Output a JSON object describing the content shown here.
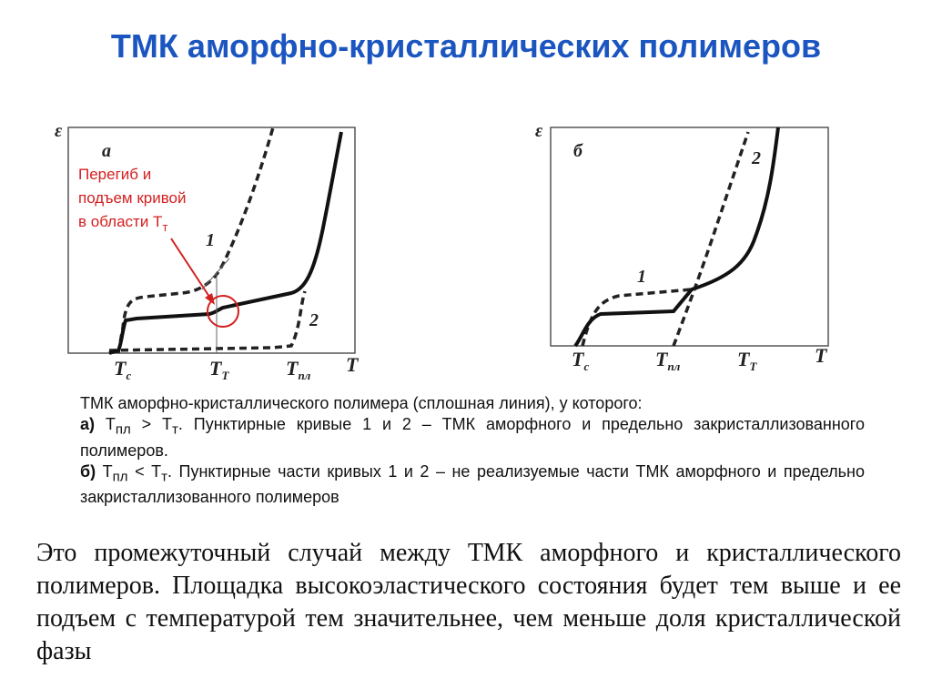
{
  "title": "ТМК аморфно-кристаллических полимеров",
  "diagrams": [
    {
      "panel": "а",
      "y_axis": "ε",
      "x_axis": "T",
      "curve_labels": [
        "1",
        "2"
      ],
      "x_labels": [
        {
          "letter": "T",
          "sub": "c"
        },
        {
          "letter": "T",
          "sub": "T"
        },
        {
          "letter": "T",
          "sub": "пл"
        }
      ],
      "annotation": {
        "lines": [
          "Перегиб и",
          "подъем кривой",
          "в области T"
        ],
        "sub": "т"
      }
    },
    {
      "panel": "б",
      "y_axis": "ε",
      "x_axis": "T",
      "curve_labels": [
        "1",
        "2"
      ],
      "x_labels": [
        {
          "letter": "T",
          "sub": "c"
        },
        {
          "letter": "T",
          "sub": "пл"
        },
        {
          "letter": "T",
          "sub": "T"
        }
      ]
    }
  ],
  "caption": {
    "intro": "ТМК аморфно-кристаллического полимера (сплошная линия), у которого:",
    "items": [
      {
        "label": "а)",
        "t1": "T",
        "t1_sub": "пл",
        "relation": ">",
        "t2": "T",
        "t2_sub": "т",
        "text": ". Пунктирные кривые 1 и 2 – ТМК аморфного и предельно закристаллизованного полимеров."
      },
      {
        "label": "б)",
        "t1": "T",
        "t1_sub": "пл",
        "relation": "<",
        "t2": "T",
        "t2_sub": "т",
        "text": ". Пунктирные части кривых 1 и 2 – не реализуемые части ТМК аморфного и предельно закристаллизованного полимеров"
      }
    ]
  },
  "body": "Это промежуточный случай между ТМК аморфного и кристаллического полимеров. Площадка высокоэластического состояния будет тем выше и ее подъем с температурой тем значительнее, чем меньше доля кристаллической фазы"
}
